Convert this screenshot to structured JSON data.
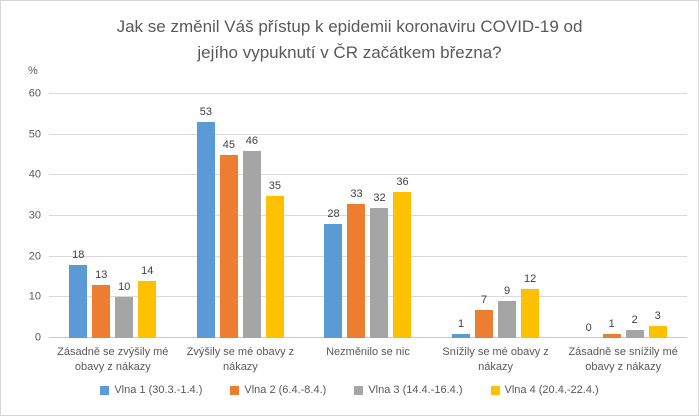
{
  "chart": {
    "title_lines": [
      "Jak se změnil Váš přístup k epidemii koronaviru COVID-19 od",
      "jejího vypuknutí v ČR začátkem března?"
    ],
    "y_axis_unit": "%"
  },
  "chart_data": {
    "type": "bar",
    "title": "Jak se změnil Váš přístup k epidemii koronaviru COVID-19 od jejího vypuknutí v ČR začátkem března?",
    "categories": [
      "Zásadně se zvýšily mé obavy z nákazy",
      "Zvýšily se mé obavy z nákazy",
      "Nezměnilo se nic",
      "Snížily se mé obavy z nákazy",
      "Zásadně se snížily mé obavy z nákazy"
    ],
    "series": [
      {
        "name": "Vlna 1 (30.3.-1.4.)",
        "color": "#5B9BD5",
        "values": [
          18,
          53,
          28,
          1,
          0
        ]
      },
      {
        "name": "Vlna 2 (6.4.-8.4.)",
        "color": "#ED7D31",
        "values": [
          13,
          45,
          33,
          7,
          1
        ]
      },
      {
        "name": "Vlna 3 (14.4.-16.4.)",
        "color": "#A5A5A5",
        "values": [
          10,
          46,
          32,
          9,
          2
        ]
      },
      {
        "name": "Vlna 4 (20.4.-22.4.)",
        "color": "#FFC000",
        "values": [
          14,
          35,
          36,
          12,
          3
        ]
      }
    ],
    "ylabel": "%",
    "ylim": [
      0,
      60
    ],
    "yticks": [
      0,
      10,
      20,
      30,
      40,
      50,
      60
    ],
    "grid": true,
    "legend_position": "bottom",
    "data_labels": true
  }
}
